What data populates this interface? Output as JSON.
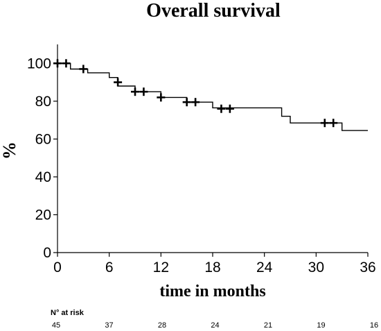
{
  "chart_data": {
    "type": "line",
    "title": "Overall survival",
    "xlabel": "time in months",
    "ylabel": "%",
    "xlim": [
      0,
      36
    ],
    "ylim": [
      0,
      110
    ],
    "x_ticks": [
      0,
      6,
      12,
      18,
      24,
      30,
      36
    ],
    "y_ticks": [
      0,
      20,
      40,
      60,
      80,
      100
    ],
    "grid": false,
    "series": [
      {
        "step_points": [
          [
            0,
            100
          ],
          [
            1.5,
            100
          ],
          [
            1.5,
            97
          ],
          [
            3.5,
            97
          ],
          [
            3.5,
            95
          ],
          [
            6,
            95
          ],
          [
            6,
            92.5
          ],
          [
            7,
            92.5
          ],
          [
            7,
            88
          ],
          [
            9,
            88
          ],
          [
            9,
            85
          ],
          [
            12,
            85
          ],
          [
            12,
            82
          ],
          [
            15,
            82
          ],
          [
            15,
            79.5
          ],
          [
            18,
            79.5
          ],
          [
            18,
            76.5
          ],
          [
            26,
            76.5
          ],
          [
            26,
            72
          ],
          [
            27,
            72
          ],
          [
            27,
            68.5
          ],
          [
            33,
            68.5
          ],
          [
            33,
            64.5
          ],
          [
            36,
            64.5
          ]
        ],
        "censored": [
          [
            0,
            100
          ],
          [
            1,
            100
          ],
          [
            3,
            97
          ],
          [
            7,
            90
          ],
          [
            9,
            85
          ],
          [
            10,
            85
          ],
          [
            12,
            82
          ],
          [
            15,
            79.5
          ],
          [
            16,
            79.5
          ],
          [
            19,
            76
          ],
          [
            20,
            76
          ],
          [
            31,
            68.5
          ],
          [
            32,
            68.5
          ]
        ]
      }
    ],
    "at_risk": {
      "title": "N° at risk",
      "times": [
        0,
        6,
        12,
        18,
        24,
        30,
        36
      ],
      "counts": [
        "45",
        "37",
        "28",
        "24",
        "21",
        "19",
        "16"
      ]
    }
  }
}
